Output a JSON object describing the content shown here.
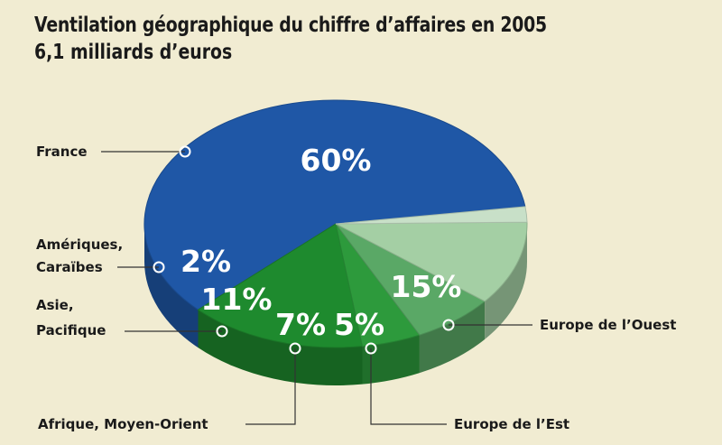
{
  "title": "Ventilation géographique du chiffre d’affaires en 2005",
  "subtitle": "6,1 milliards d’euros",
  "chart_data": {
    "type": "pie",
    "categories": [
      "France",
      "Europe de l’Ouest",
      "Europe de l’Est",
      "Afrique, Moyen-Orient",
      "Asie, Pacifique",
      "Amériques, Caraïbes"
    ],
    "values": [
      60,
      15,
      5,
      7,
      11,
      2
    ],
    "value_labels": [
      "60%",
      "15%",
      "5%",
      "7%",
      "11%",
      "2%"
    ],
    "colors": [
      "#1f57a6",
      "#1e8a2e",
      "#2d9a3c",
      "#5aa866",
      "#a4cfa4",
      "#c8e0c8"
    ],
    "legend": "callouts",
    "grid": false
  }
}
